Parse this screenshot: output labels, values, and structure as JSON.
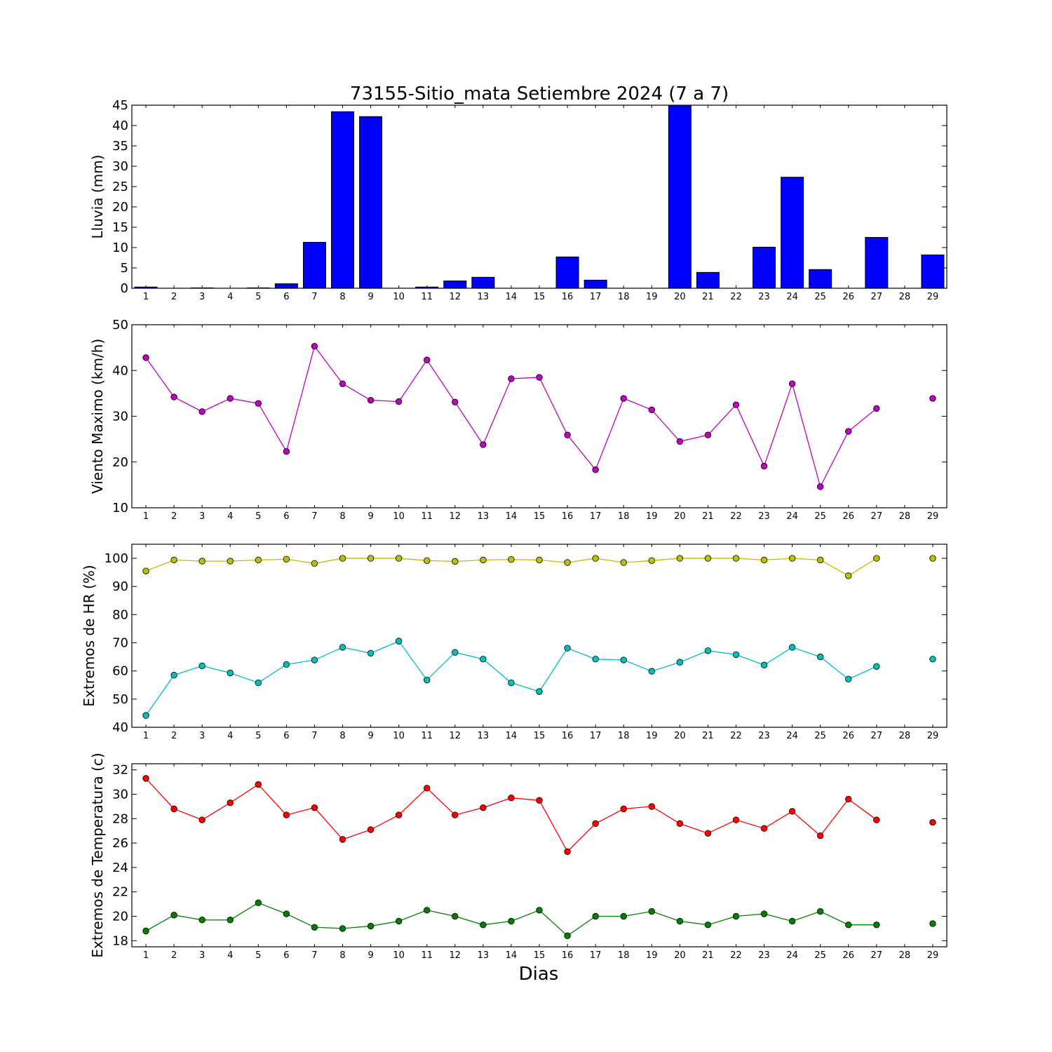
{
  "title": "73155-Sitio_mata Setiembre 2024  (7 a 7)",
  "xlabel": "Dias",
  "colors": {
    "rain": "#0000ff",
    "wind": "#bf00bf",
    "hr_max": "#bfbf00",
    "hr_min": "#00bfbf",
    "temp_max": "#ff0000",
    "temp_min": "#008000"
  },
  "chart_data": [
    {
      "type": "bar",
      "ylabel": "Lluvia (mm)",
      "ylim": [
        0,
        45
      ],
      "yticks": [
        0,
        5,
        10,
        15,
        20,
        25,
        30,
        35,
        40,
        45
      ],
      "categories": [
        "1",
        "2",
        "3",
        "4",
        "5",
        "6",
        "7",
        "8",
        "9",
        "10",
        "11",
        "12",
        "13",
        "14",
        "15",
        "16",
        "17",
        "18",
        "19",
        "20",
        "21",
        "22",
        "23",
        "24",
        "25",
        "26",
        "27",
        "28",
        "29"
      ],
      "series": [
        {
          "values": [
            0.3,
            0,
            0.1,
            0,
            0.1,
            1.1,
            11.3,
            43.4,
            42.2,
            0,
            0.3,
            1.8,
            2.7,
            0,
            0,
            7.7,
            2.0,
            0,
            0,
            45.0,
            3.9,
            0,
            10.1,
            27.3,
            4.6,
            0,
            12.5,
            0,
            8.2
          ],
          "color_key": "rain"
        }
      ]
    },
    {
      "type": "line",
      "ylabel": "Viento Maximo (km/h)",
      "ylim": [
        10,
        50
      ],
      "yticks": [
        10,
        20,
        30,
        40,
        50
      ],
      "x": [
        1,
        2,
        3,
        4,
        5,
        6,
        7,
        8,
        9,
        10,
        11,
        12,
        13,
        14,
        15,
        16,
        17,
        18,
        19,
        20,
        21,
        22,
        23,
        24,
        25,
        26,
        27,
        28,
        29
      ],
      "series": [
        {
          "values": [
            42.8,
            34.2,
            31.0,
            33.9,
            32.8,
            22.3,
            45.3,
            37.1,
            33.5,
            33.2,
            42.3,
            33.1,
            23.8,
            38.2,
            38.5,
            25.9,
            18.3,
            33.9,
            31.4,
            24.5,
            25.9,
            32.5,
            19.1,
            37.1,
            14.6,
            26.7,
            31.7,
            null,
            33.9
          ],
          "color_key": "wind"
        }
      ]
    },
    {
      "type": "line",
      "ylabel": "Extremos de HR (%)",
      "ylim": [
        40,
        105
      ],
      "yticks": [
        40,
        50,
        60,
        70,
        80,
        90,
        100
      ],
      "x": [
        1,
        2,
        3,
        4,
        5,
        6,
        7,
        8,
        9,
        10,
        11,
        12,
        13,
        14,
        15,
        16,
        17,
        18,
        19,
        20,
        21,
        22,
        23,
        24,
        25,
        26,
        27,
        28,
        29
      ],
      "series": [
        {
          "values": [
            95.5,
            99.4,
            99.0,
            99.0,
            99.4,
            99.7,
            98.2,
            100,
            100,
            100,
            99.2,
            98.9,
            99.4,
            99.6,
            99.4,
            98.5,
            100,
            98.5,
            99.2,
            100,
            100,
            100,
            99.4,
            100,
            99.4,
            93.8,
            100,
            null,
            100
          ],
          "color_key": "hr_max"
        },
        {
          "values": [
            44.2,
            58.5,
            61.8,
            59.3,
            55.8,
            62.3,
            63.9,
            68.4,
            66.3,
            70.6,
            56.8,
            66.6,
            64.2,
            55.8,
            52.7,
            68.1,
            64.2,
            63.9,
            59.9,
            63.1,
            67.2,
            65.8,
            62.1,
            68.4,
            65.0,
            57.1,
            61.6,
            null,
            64.2
          ],
          "color_key": "hr_min"
        }
      ]
    },
    {
      "type": "line",
      "ylabel": "Extremos de Temperatura (c)",
      "ylim": [
        17.5,
        32.5
      ],
      "yticks": [
        18,
        20,
        22,
        24,
        26,
        28,
        30,
        32
      ],
      "x": [
        1,
        2,
        3,
        4,
        5,
        6,
        7,
        8,
        9,
        10,
        11,
        12,
        13,
        14,
        15,
        16,
        17,
        18,
        19,
        20,
        21,
        22,
        23,
        24,
        25,
        26,
        27,
        28,
        29
      ],
      "series": [
        {
          "values": [
            31.3,
            28.8,
            27.9,
            29.3,
            30.8,
            28.3,
            28.9,
            26.3,
            27.1,
            28.3,
            30.5,
            28.3,
            28.9,
            29.7,
            29.5,
            25.3,
            27.6,
            28.8,
            29.0,
            27.6,
            26.8,
            27.9,
            27.2,
            28.6,
            26.6,
            29.6,
            27.9,
            null,
            27.7
          ],
          "color_key": "temp_max"
        },
        {
          "values": [
            18.8,
            20.1,
            19.7,
            19.7,
            21.1,
            20.2,
            19.1,
            19.0,
            19.2,
            19.6,
            20.5,
            20.0,
            19.3,
            19.6,
            20.5,
            18.4,
            20.0,
            20.0,
            20.4,
            19.6,
            19.3,
            20.0,
            20.2,
            19.6,
            20.4,
            19.3,
            19.3,
            null,
            19.4
          ],
          "color_key": "temp_min"
        }
      ]
    }
  ]
}
